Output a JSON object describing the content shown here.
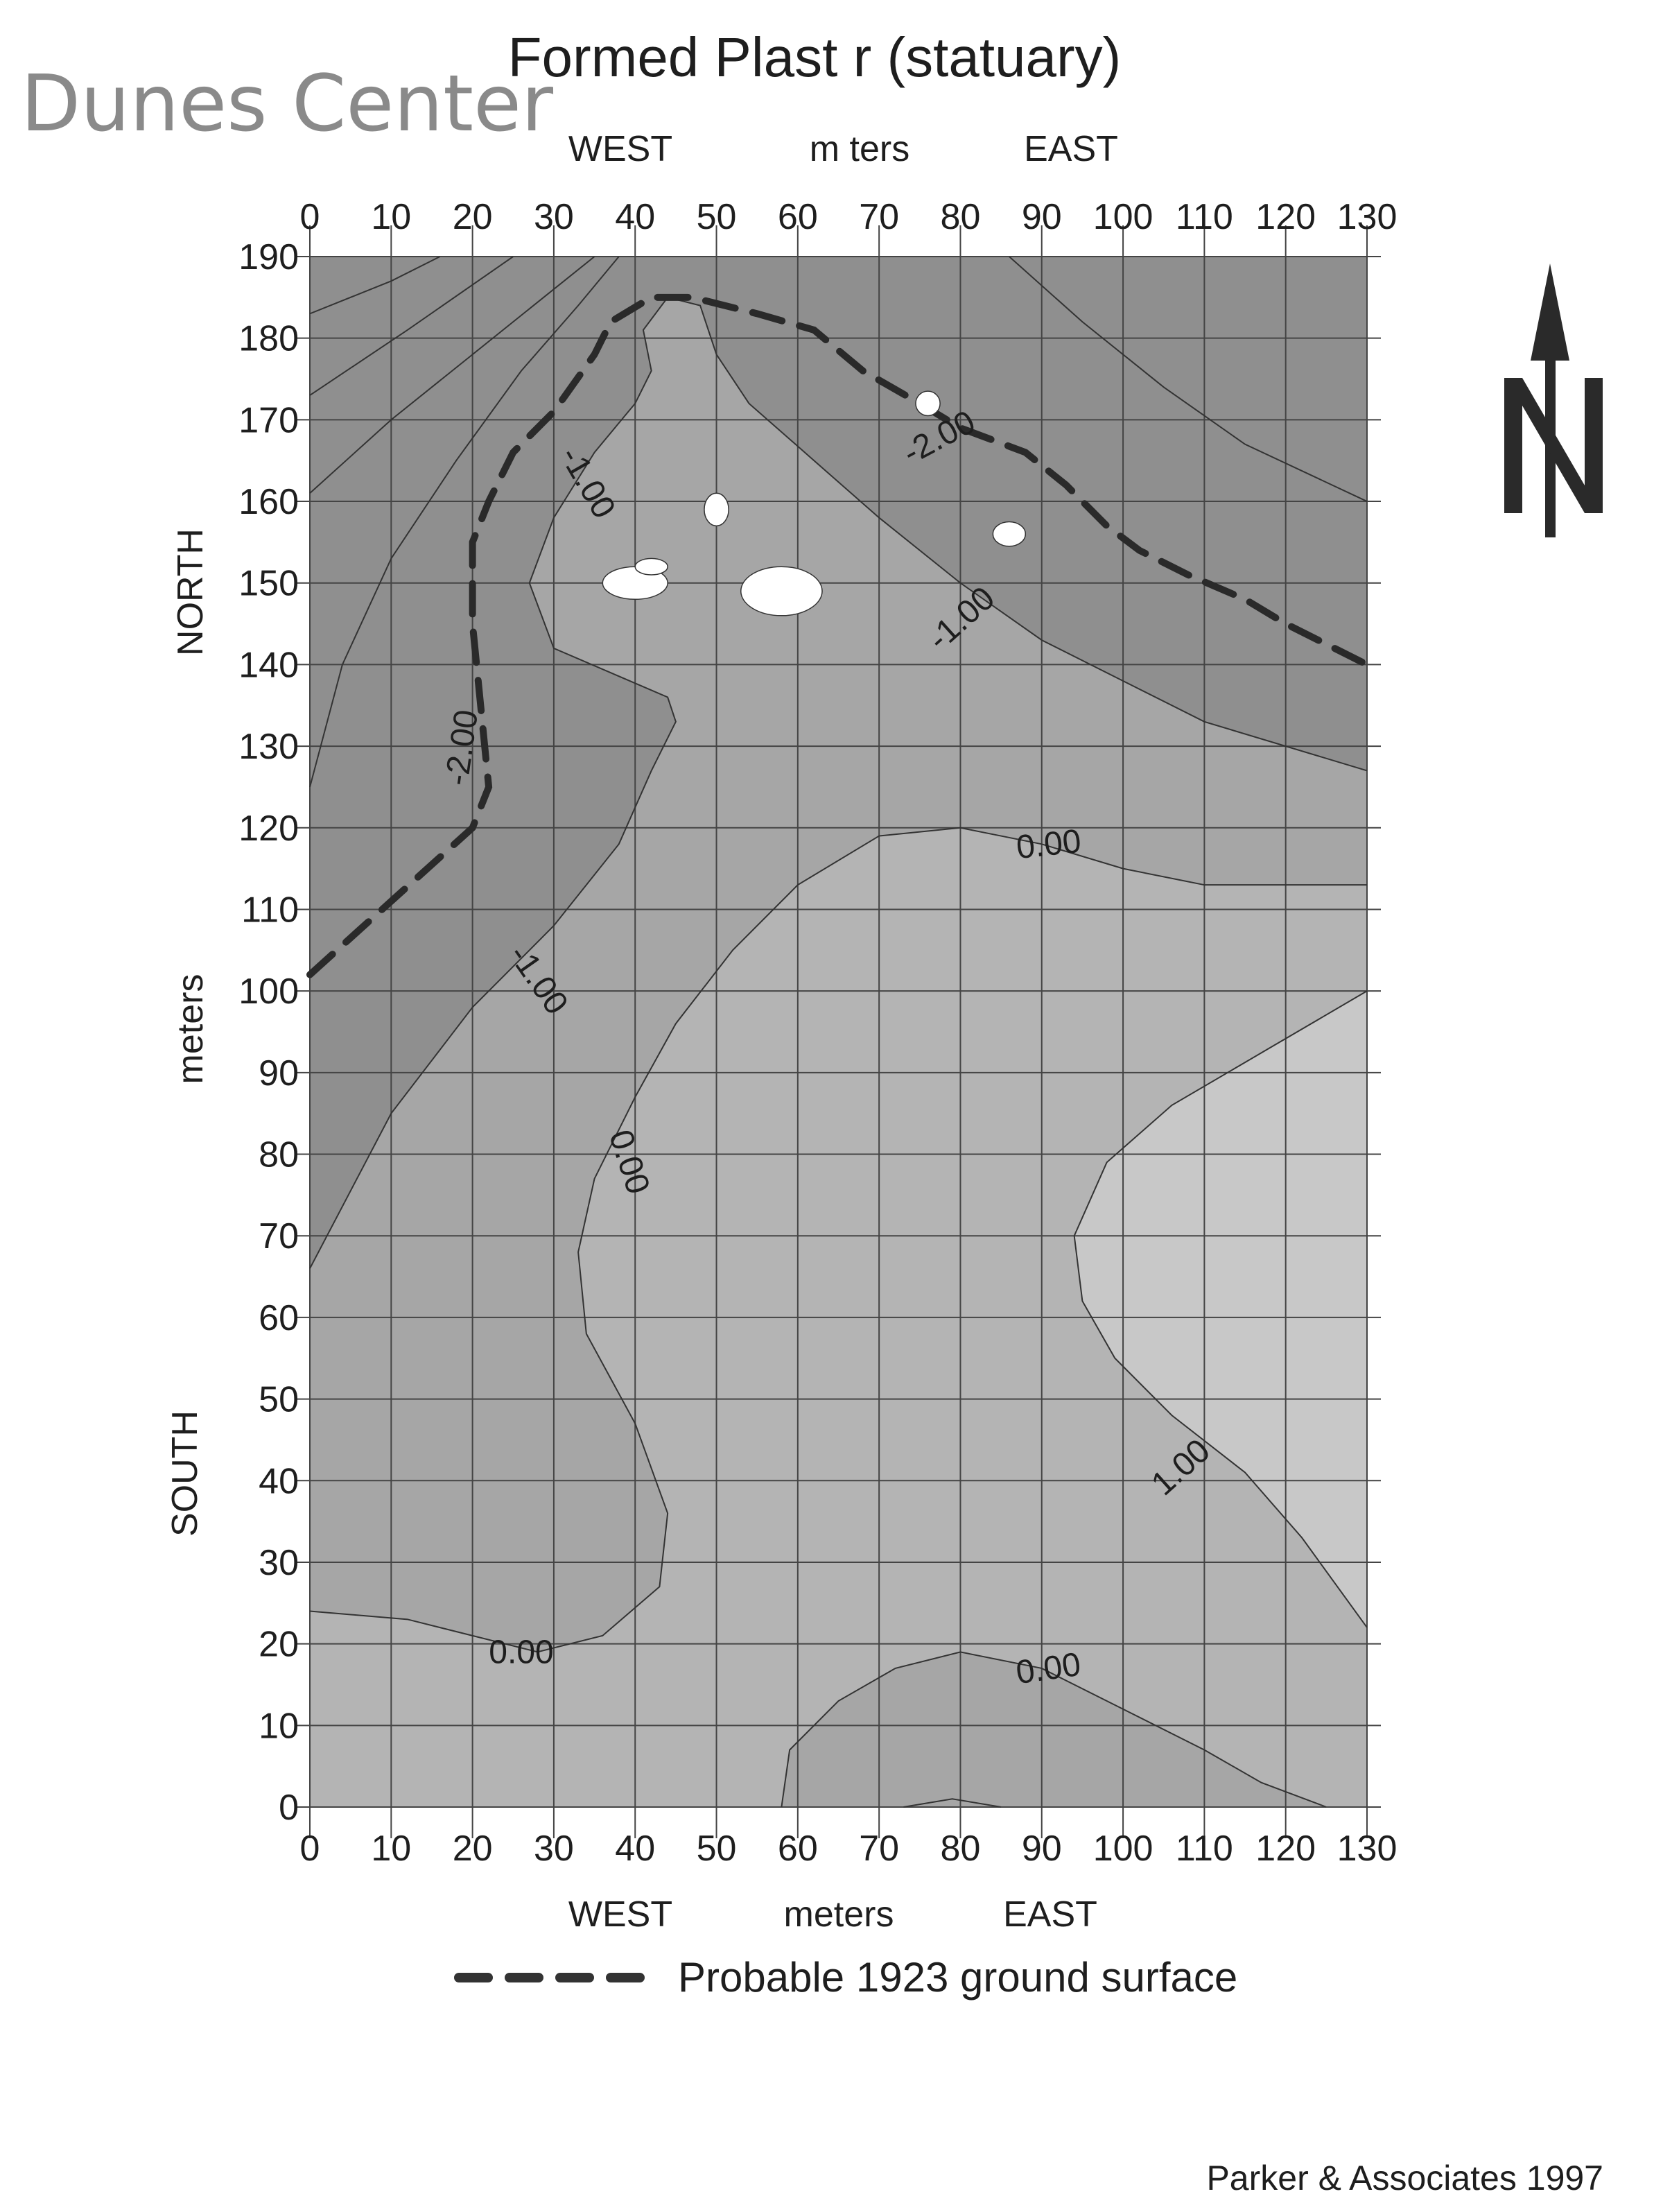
{
  "watermark": "Dunes Center",
  "credit": "Parker & Associates 1997",
  "north_label": "N",
  "chart_data": {
    "type": "contour",
    "title": "Formed Plast  r (statuary)",
    "top_axis": {
      "west": "WEST",
      "label": "m  ters",
      "east": "EAST"
    },
    "bottom_axis": {
      "west": "WEST",
      "label": "meters",
      "east": "EAST"
    },
    "left_axis": {
      "north": "NORTH",
      "label": "meters",
      "south": "SOUTH"
    },
    "xlim": [
      0,
      130
    ],
    "ylim": [
      0,
      190
    ],
    "x_ticks": [
      0,
      10,
      20,
      30,
      40,
      50,
      60,
      70,
      80,
      90,
      100,
      110,
      120,
      130
    ],
    "y_ticks": [
      0,
      10,
      20,
      30,
      40,
      50,
      60,
      70,
      80,
      90,
      100,
      110,
      120,
      130,
      140,
      150,
      160,
      170,
      180,
      190
    ],
    "grid": true,
    "legend": {
      "label": "Probable 1923 ground surface",
      "style": "dashed",
      "placement": "bottom"
    },
    "ground_surface_1923": [
      [
        0,
        102
      ],
      [
        10,
        111
      ],
      [
        20,
        120
      ],
      [
        22,
        125
      ],
      [
        21,
        135
      ],
      [
        20,
        145
      ],
      [
        20,
        155
      ],
      [
        22,
        160
      ],
      [
        25,
        166
      ],
      [
        30,
        171
      ],
      [
        35,
        178
      ],
      [
        37,
        182
      ],
      [
        42,
        185
      ],
      [
        47,
        185
      ],
      [
        55,
        183
      ],
      [
        62,
        181
      ],
      [
        68,
        176
      ],
      [
        75,
        172
      ],
      [
        80,
        169
      ],
      [
        88,
        166
      ],
      [
        93,
        162
      ],
      [
        98,
        157
      ],
      [
        102,
        154
      ],
      [
        108,
        151
      ],
      [
        115,
        148
      ],
      [
        120,
        145
      ],
      [
        130,
        140
      ]
    ],
    "contours": [
      {
        "level": -1.0,
        "points": [
          [
            0,
            66
          ],
          [
            10,
            85
          ],
          [
            20,
            98
          ],
          [
            30,
            108
          ],
          [
            38,
            118
          ],
          [
            42,
            127
          ],
          [
            45,
            133
          ],
          [
            44,
            136
          ],
          [
            37,
            139
          ],
          [
            30,
            142
          ],
          [
            27,
            150
          ],
          [
            30,
            158
          ],
          [
            35,
            166
          ],
          [
            40,
            172
          ],
          [
            42,
            176
          ],
          [
            41,
            181
          ],
          [
            44,
            185
          ],
          [
            48,
            184
          ],
          [
            50,
            178
          ],
          [
            54,
            172
          ],
          [
            62,
            165
          ],
          [
            70,
            158
          ],
          [
            80,
            150
          ],
          [
            90,
            143
          ],
          [
            100,
            138
          ],
          [
            110,
            133
          ],
          [
            130,
            127
          ]
        ]
      },
      {
        "level": -2.0,
        "points": [
          [
            0,
            125
          ],
          [
            4,
            140
          ],
          [
            10,
            153
          ],
          [
            18,
            165
          ],
          [
            26,
            176
          ],
          [
            33,
            184
          ],
          [
            38,
            190
          ]
        ]
      },
      {
        "level": -2.0,
        "points": [
          [
            0,
            161
          ],
          [
            10,
            170
          ],
          [
            20,
            178
          ],
          [
            30,
            186
          ],
          [
            35,
            190
          ]
        ]
      },
      {
        "level": -2.0,
        "points": [
          [
            0,
            183
          ],
          [
            10,
            187
          ],
          [
            16,
            190
          ]
        ]
      },
      {
        "level": -2.0,
        "points": [
          [
            0,
            173
          ],
          [
            12,
            181
          ],
          [
            25,
            190
          ]
        ]
      },
      {
        "level": -2.0,
        "points": [
          [
            86,
            190
          ],
          [
            95,
            182
          ],
          [
            105,
            174
          ],
          [
            115,
            167
          ],
          [
            130,
            160
          ]
        ]
      },
      {
        "level": 0.0,
        "points": [
          [
            0,
            24
          ],
          [
            12,
            23
          ],
          [
            20,
            21
          ],
          [
            28,
            19
          ],
          [
            36,
            21
          ],
          [
            43,
            27
          ],
          [
            44,
            36
          ],
          [
            40,
            47
          ],
          [
            34,
            58
          ],
          [
            33,
            68
          ],
          [
            35,
            77
          ],
          [
            40,
            87
          ],
          [
            45,
            96
          ],
          [
            52,
            105
          ],
          [
            60,
            113
          ],
          [
            70,
            119
          ],
          [
            80,
            120
          ],
          [
            90,
            118
          ],
          [
            100,
            115
          ],
          [
            110,
            113
          ],
          [
            130,
            113
          ]
        ]
      },
      {
        "level": 0.0,
        "points": [
          [
            58,
            0
          ],
          [
            59,
            7
          ],
          [
            65,
            13
          ],
          [
            72,
            17
          ],
          [
            80,
            19
          ],
          [
            90,
            17
          ],
          [
            100,
            12
          ],
          [
            110,
            7
          ],
          [
            117,
            3
          ],
          [
            125,
            0
          ]
        ]
      },
      {
        "level": 1.0,
        "points": [
          [
            130,
            100
          ],
          [
            118,
            93
          ],
          [
            106,
            86
          ],
          [
            98,
            79
          ],
          [
            94,
            70
          ],
          [
            95,
            62
          ],
          [
            99,
            55
          ],
          [
            106,
            48
          ],
          [
            115,
            41
          ],
          [
            122,
            33
          ],
          [
            130,
            22
          ]
        ]
      },
      {
        "level": 1.0,
        "points": [
          [
            73,
            0
          ],
          [
            79,
            1
          ],
          [
            85,
            0
          ]
        ]
      }
    ],
    "contour_labels": [
      {
        "text": "-1.00",
        "x": 33,
        "y": 163,
        "angle": -60
      },
      {
        "text": "-2.00",
        "x": 78,
        "y": 168,
        "angle": 28
      },
      {
        "text": "-1.00",
        "x": 81,
        "y": 146,
        "angle": 42
      },
      {
        "text": "-2.00",
        "x": 20,
        "y": 131,
        "angle": 82
      },
      {
        "text": "0.00",
        "x": 91,
        "y": 118,
        "angle": 6
      },
      {
        "text": "-1.00",
        "x": 27,
        "y": 102,
        "angle": -55
      },
      {
        "text": "0.00",
        "x": 38,
        "y": 80,
        "angle": -72
      },
      {
        "text": "1.00",
        "x": 108,
        "y": 42,
        "angle": 42
      },
      {
        "text": "0.00",
        "x": 26,
        "y": 19,
        "angle": 0
      },
      {
        "text": "0.00",
        "x": 91,
        "y": 17,
        "angle": 8
      }
    ],
    "fill_colors": {
      "low": "#8f8f8f",
      "mid": "#a6a6a6",
      "zero": "#b4b4b4",
      "high": "#c8c8c8"
    }
  }
}
